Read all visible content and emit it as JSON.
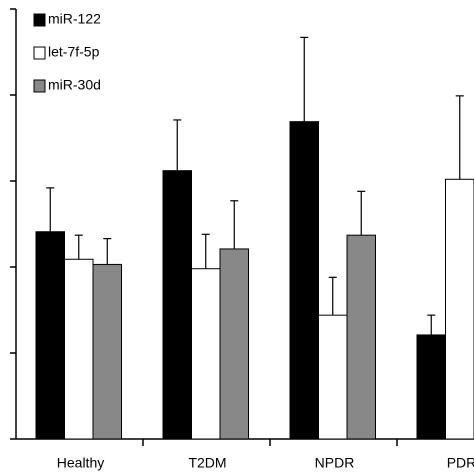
{
  "chart_data": {
    "type": "bar",
    "categories": [
      "Healthy",
      "T2DM",
      "NPDR",
      "PDR"
    ],
    "series": [
      {
        "name": "miR-122",
        "color": "#000000",
        "values": [
          2.41,
          3.12,
          3.69,
          1.21
        ],
        "errors": [
          0.51,
          0.59,
          0.98,
          0.23
        ]
      },
      {
        "name": "let-7f-5p",
        "color": "#ffffff",
        "values": [
          2.09,
          1.98,
          1.44,
          3.02
        ],
        "errors": [
          0.28,
          0.4,
          0.44,
          0.97
        ]
      },
      {
        "name": "miR-30d",
        "color": "#888888",
        "values": [
          2.03,
          2.21,
          2.37,
          null
        ],
        "errors": [
          0.3,
          0.56,
          0.51,
          null
        ]
      }
    ],
    "ylim": [
      0,
      5
    ],
    "yticks": [
      0,
      1,
      2,
      3,
      4,
      5
    ],
    "legend": "upper left"
  }
}
